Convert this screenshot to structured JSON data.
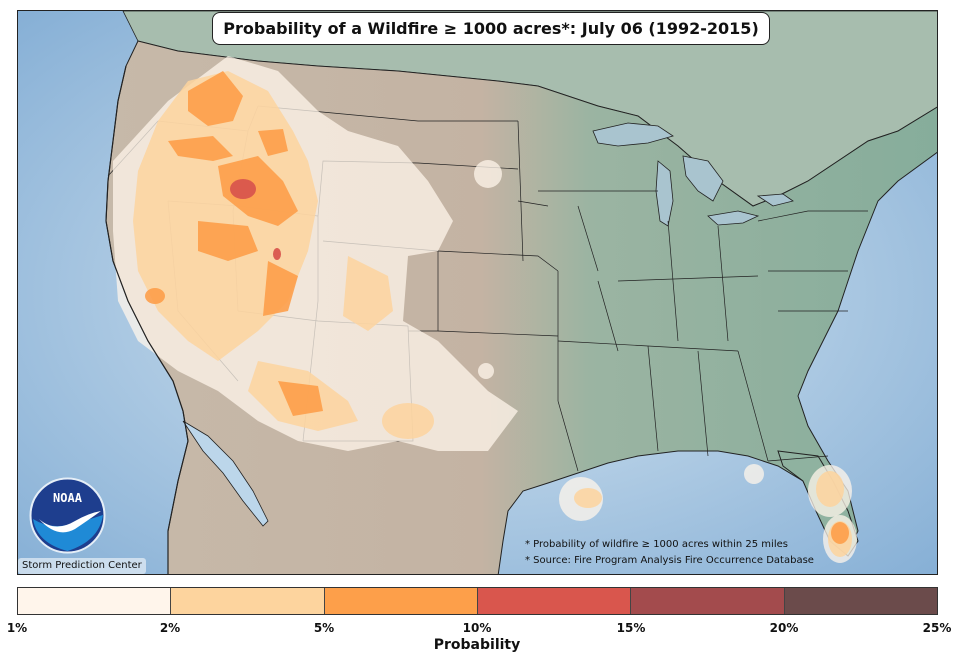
{
  "title": "Probability of a Wildfire ≥ 1000 acres*: July 06 (1992-2015)",
  "footnotes": [
    "* Probability of wildfire ≥ 1000 acres within 25 miles",
    "* Source: Fire Program Analysis Fire Occurrence Database"
  ],
  "credit": "Storm Prediction Center",
  "logo_text": "NOAA",
  "colorbar": {
    "label": "Probability",
    "ticks": [
      "1%",
      "2%",
      "5%",
      "10%",
      "15%",
      "20%",
      "25%"
    ],
    "colors": [
      "#fff5eb",
      "#fdd49e",
      "#fd9f4a",
      "#d9564d",
      "#a34b4d",
      "#6b4b4b"
    ]
  },
  "colors": {
    "ocean": "#8fb9dc",
    "land_west": "#c9bdae",
    "land_east": "#8fb3a0",
    "mexico": "#b7ad9f"
  }
}
